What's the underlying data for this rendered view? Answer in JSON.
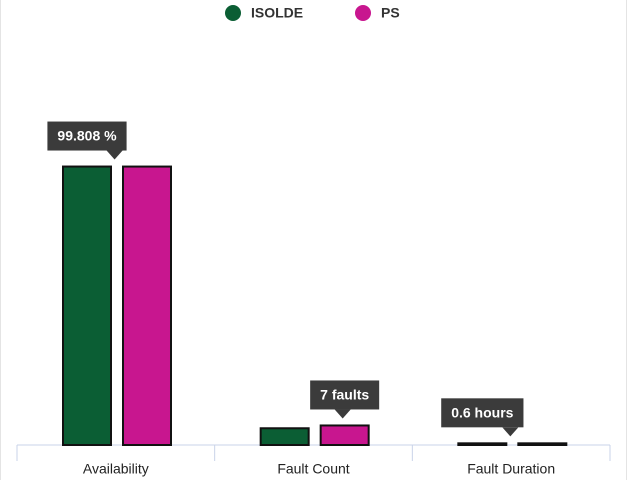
{
  "chart_data": {
    "type": "bar",
    "categories": [
      "Availability",
      "Fault Count",
      "Fault Duration"
    ],
    "series": [
      {
        "name": "ISOLDE",
        "color": "#0b5e34",
        "values": [
          99.808,
          6,
          0.6
        ],
        "value_labels": [
          "99.808 %",
          null,
          "0.6 hours"
        ]
      },
      {
        "name": "PS",
        "color": "#c8168f",
        "values": [
          99.8,
          7,
          0.6
        ],
        "value_labels": [
          null,
          "7 faults",
          null
        ]
      }
    ],
    "ylim": [
      0,
      100
    ],
    "legend": "top"
  }
}
